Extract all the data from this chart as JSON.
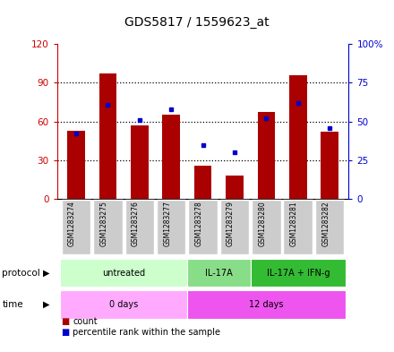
{
  "title": "GDS5817 / 1559623_at",
  "samples": [
    "GSM1283274",
    "GSM1283275",
    "GSM1283276",
    "GSM1283277",
    "GSM1283278",
    "GSM1283279",
    "GSM1283280",
    "GSM1283281",
    "GSM1283282"
  ],
  "counts": [
    53,
    97,
    57,
    65,
    26,
    18,
    67,
    96,
    52
  ],
  "percentile_ranks": [
    42,
    61,
    51,
    58,
    35,
    30,
    52,
    62,
    46
  ],
  "ylim_left": [
    0,
    120
  ],
  "ylim_right": [
    0,
    100
  ],
  "yticks_left": [
    0,
    30,
    60,
    90,
    120
  ],
  "ytick_labels_left": [
    "0",
    "30",
    "60",
    "90",
    "120"
  ],
  "yticks_right": [
    0,
    25,
    50,
    75,
    100
  ],
  "ytick_labels_right": [
    "0",
    "25",
    "50",
    "75",
    "100%"
  ],
  "bar_color": "#aa0000",
  "dot_color": "#0000cc",
  "protocol_groups": [
    {
      "label": "untreated",
      "start": 0,
      "end": 4,
      "color": "#ccffcc"
    },
    {
      "label": "IL-17A",
      "start": 4,
      "end": 6,
      "color": "#88dd88"
    },
    {
      "label": "IL-17A + IFN-g",
      "start": 6,
      "end": 9,
      "color": "#33bb33"
    }
  ],
  "time_groups": [
    {
      "label": "0 days",
      "start": 0,
      "end": 4,
      "color": "#ffaaff"
    },
    {
      "label": "12 days",
      "start": 4,
      "end": 9,
      "color": "#ee55ee"
    }
  ],
  "legend_count_label": "count",
  "legend_pct_label": "percentile rank within the sample",
  "left_axis_color": "#cc0000",
  "right_axis_color": "#0000cc",
  "grid_linestyle": "dotted"
}
